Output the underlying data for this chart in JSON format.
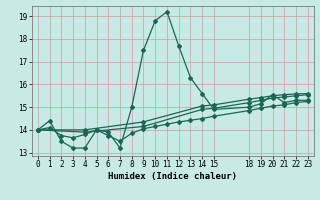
{
  "xlabel": "Humidex (Indice chaleur)",
  "xlim": [
    -0.5,
    23.5
  ],
  "ylim": [
    12.85,
    19.45
  ],
  "yticks": [
    13,
    14,
    15,
    16,
    17,
    18,
    19
  ],
  "xticks_pos": [
    0,
    1,
    2,
    3,
    4,
    5,
    6,
    7,
    8,
    9,
    10,
    11,
    12,
    13,
    14,
    15,
    18,
    19,
    20,
    21,
    22,
    23
  ],
  "xticks_labels": [
    "0",
    "1",
    "2",
    "3",
    "4",
    "5",
    "6",
    "7",
    "8",
    "9",
    "10",
    "11",
    "12",
    "13",
    "14",
    "15",
    "18",
    "19",
    "20",
    "21",
    "22",
    "23"
  ],
  "bg_color": "#c8eae4",
  "grid_color": "#c8a0a0",
  "line_color": "#1a6655",
  "line1": {
    "x": [
      0,
      1,
      2,
      3,
      4,
      5,
      6,
      7,
      8,
      9,
      10,
      11,
      12,
      13,
      14,
      15,
      18,
      19,
      20,
      21,
      22,
      23
    ],
    "y": [
      14.0,
      14.4,
      13.5,
      13.2,
      13.2,
      14.0,
      13.9,
      13.2,
      15.0,
      17.5,
      18.8,
      19.2,
      17.7,
      16.3,
      15.6,
      14.9,
      15.0,
      15.15,
      15.55,
      15.2,
      15.3,
      15.3
    ]
  },
  "line2": {
    "x": [
      0,
      1,
      2,
      3,
      4,
      5,
      6,
      7,
      8,
      9,
      10,
      11,
      12,
      13,
      14,
      15,
      18,
      19,
      20,
      21,
      22,
      23
    ],
    "y": [
      14.0,
      14.1,
      13.75,
      13.65,
      13.8,
      14.0,
      13.75,
      13.5,
      13.85,
      14.05,
      14.15,
      14.25,
      14.35,
      14.42,
      14.5,
      14.6,
      14.85,
      14.95,
      15.05,
      15.1,
      15.2,
      15.25
    ]
  },
  "line3": {
    "x": [
      0,
      4,
      9,
      14,
      15,
      18,
      19,
      20,
      21,
      22,
      23
    ],
    "y": [
      14.0,
      13.9,
      14.15,
      14.9,
      14.95,
      15.2,
      15.3,
      15.4,
      15.45,
      15.5,
      15.55
    ]
  },
  "line4": {
    "x": [
      0,
      4,
      9,
      14,
      15,
      18,
      19,
      20,
      21,
      22,
      23
    ],
    "y": [
      14.0,
      14.0,
      14.35,
      15.05,
      15.1,
      15.35,
      15.42,
      15.5,
      15.55,
      15.58,
      15.6
    ]
  }
}
